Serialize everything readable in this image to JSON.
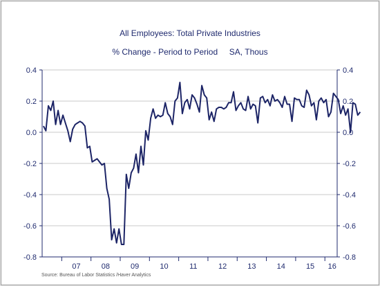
{
  "chart_data": {
    "type": "line",
    "title": "All Employees: Total Private Industries",
    "subtitle": "% Change - Period to Period     SA, Thous",
    "source": "Source:  Bureau of Labor Statistics /Haver Analytics",
    "line_color": "#1c2466",
    "grid": true,
    "ylim": [
      -0.8,
      0.4
    ],
    "yticks": [
      -0.8,
      -0.6,
      -0.4,
      -0.2,
      0.0,
      0.2,
      0.4
    ],
    "ytick_labels": [
      "-0.8",
      "-0.6",
      "-0.4",
      "-0.2",
      "0.0",
      "0.2",
      "0.4"
    ],
    "xlim": [
      2006.33,
      2016.42
    ],
    "x_year_labels": [
      {
        "label": "07",
        "x": 2007.5
      },
      {
        "label": "08",
        "x": 2008.5
      },
      {
        "label": "09",
        "x": 2009.5
      },
      {
        "label": "10",
        "x": 2010.5
      },
      {
        "label": "11",
        "x": 2011.5
      },
      {
        "label": "12",
        "x": 2012.5
      },
      {
        "label": "13",
        "x": 2013.5
      },
      {
        "label": "14",
        "x": 2014.5
      },
      {
        "label": "15",
        "x": 2015.5
      },
      {
        "label": "16",
        "x": 2016.25
      }
    ],
    "x_year_boundaries": [
      2007,
      2008,
      2009,
      2010,
      2011,
      2012,
      2013,
      2014,
      2015,
      2016
    ],
    "x_start": "2006-05",
    "frequency": "monthly",
    "values": [
      0.04,
      0.01,
      0.17,
      0.14,
      0.2,
      0.05,
      0.14,
      0.05,
      0.11,
      0.06,
      0.01,
      -0.06,
      0.02,
      0.05,
      0.06,
      0.07,
      0.06,
      0.04,
      -0.1,
      -0.09,
      -0.19,
      -0.18,
      -0.17,
      -0.19,
      -0.21,
      -0.2,
      -0.36,
      -0.43,
      -0.69,
      -0.62,
      -0.71,
      -0.62,
      -0.72,
      -0.72,
      -0.27,
      -0.36,
      -0.26,
      -0.23,
      -0.14,
      -0.26,
      -0.09,
      -0.21,
      0.01,
      -0.05,
      0.09,
      0.15,
      0.09,
      0.11,
      0.1,
      0.11,
      0.19,
      0.12,
      0.1,
      0.05,
      0.2,
      0.22,
      0.32,
      0.12,
      0.19,
      0.21,
      0.15,
      0.24,
      0.22,
      0.18,
      0.13,
      0.3,
      0.24,
      0.22,
      0.08,
      0.13,
      0.07,
      0.15,
      0.16,
      0.16,
      0.15,
      0.16,
      0.19,
      0.19,
      0.26,
      0.14,
      0.17,
      0.19,
      0.15,
      0.14,
      0.23,
      0.15,
      0.18,
      0.17,
      0.06,
      0.22,
      0.23,
      0.19,
      0.21,
      0.17,
      0.24,
      0.2,
      0.21,
      0.19,
      0.16,
      0.23,
      0.18,
      0.18,
      0.07,
      0.22,
      0.21,
      0.21,
      0.17,
      0.16,
      0.27,
      0.24,
      0.17,
      0.19,
      0.08,
      0.2,
      0.22,
      0.19,
      0.21,
      0.1,
      0.13,
      0.25,
      0.23,
      0.21,
      0.12,
      0.17,
      0.11,
      0.15,
      0.0,
      0.19,
      0.18,
      0.11,
      0.13
    ]
  }
}
